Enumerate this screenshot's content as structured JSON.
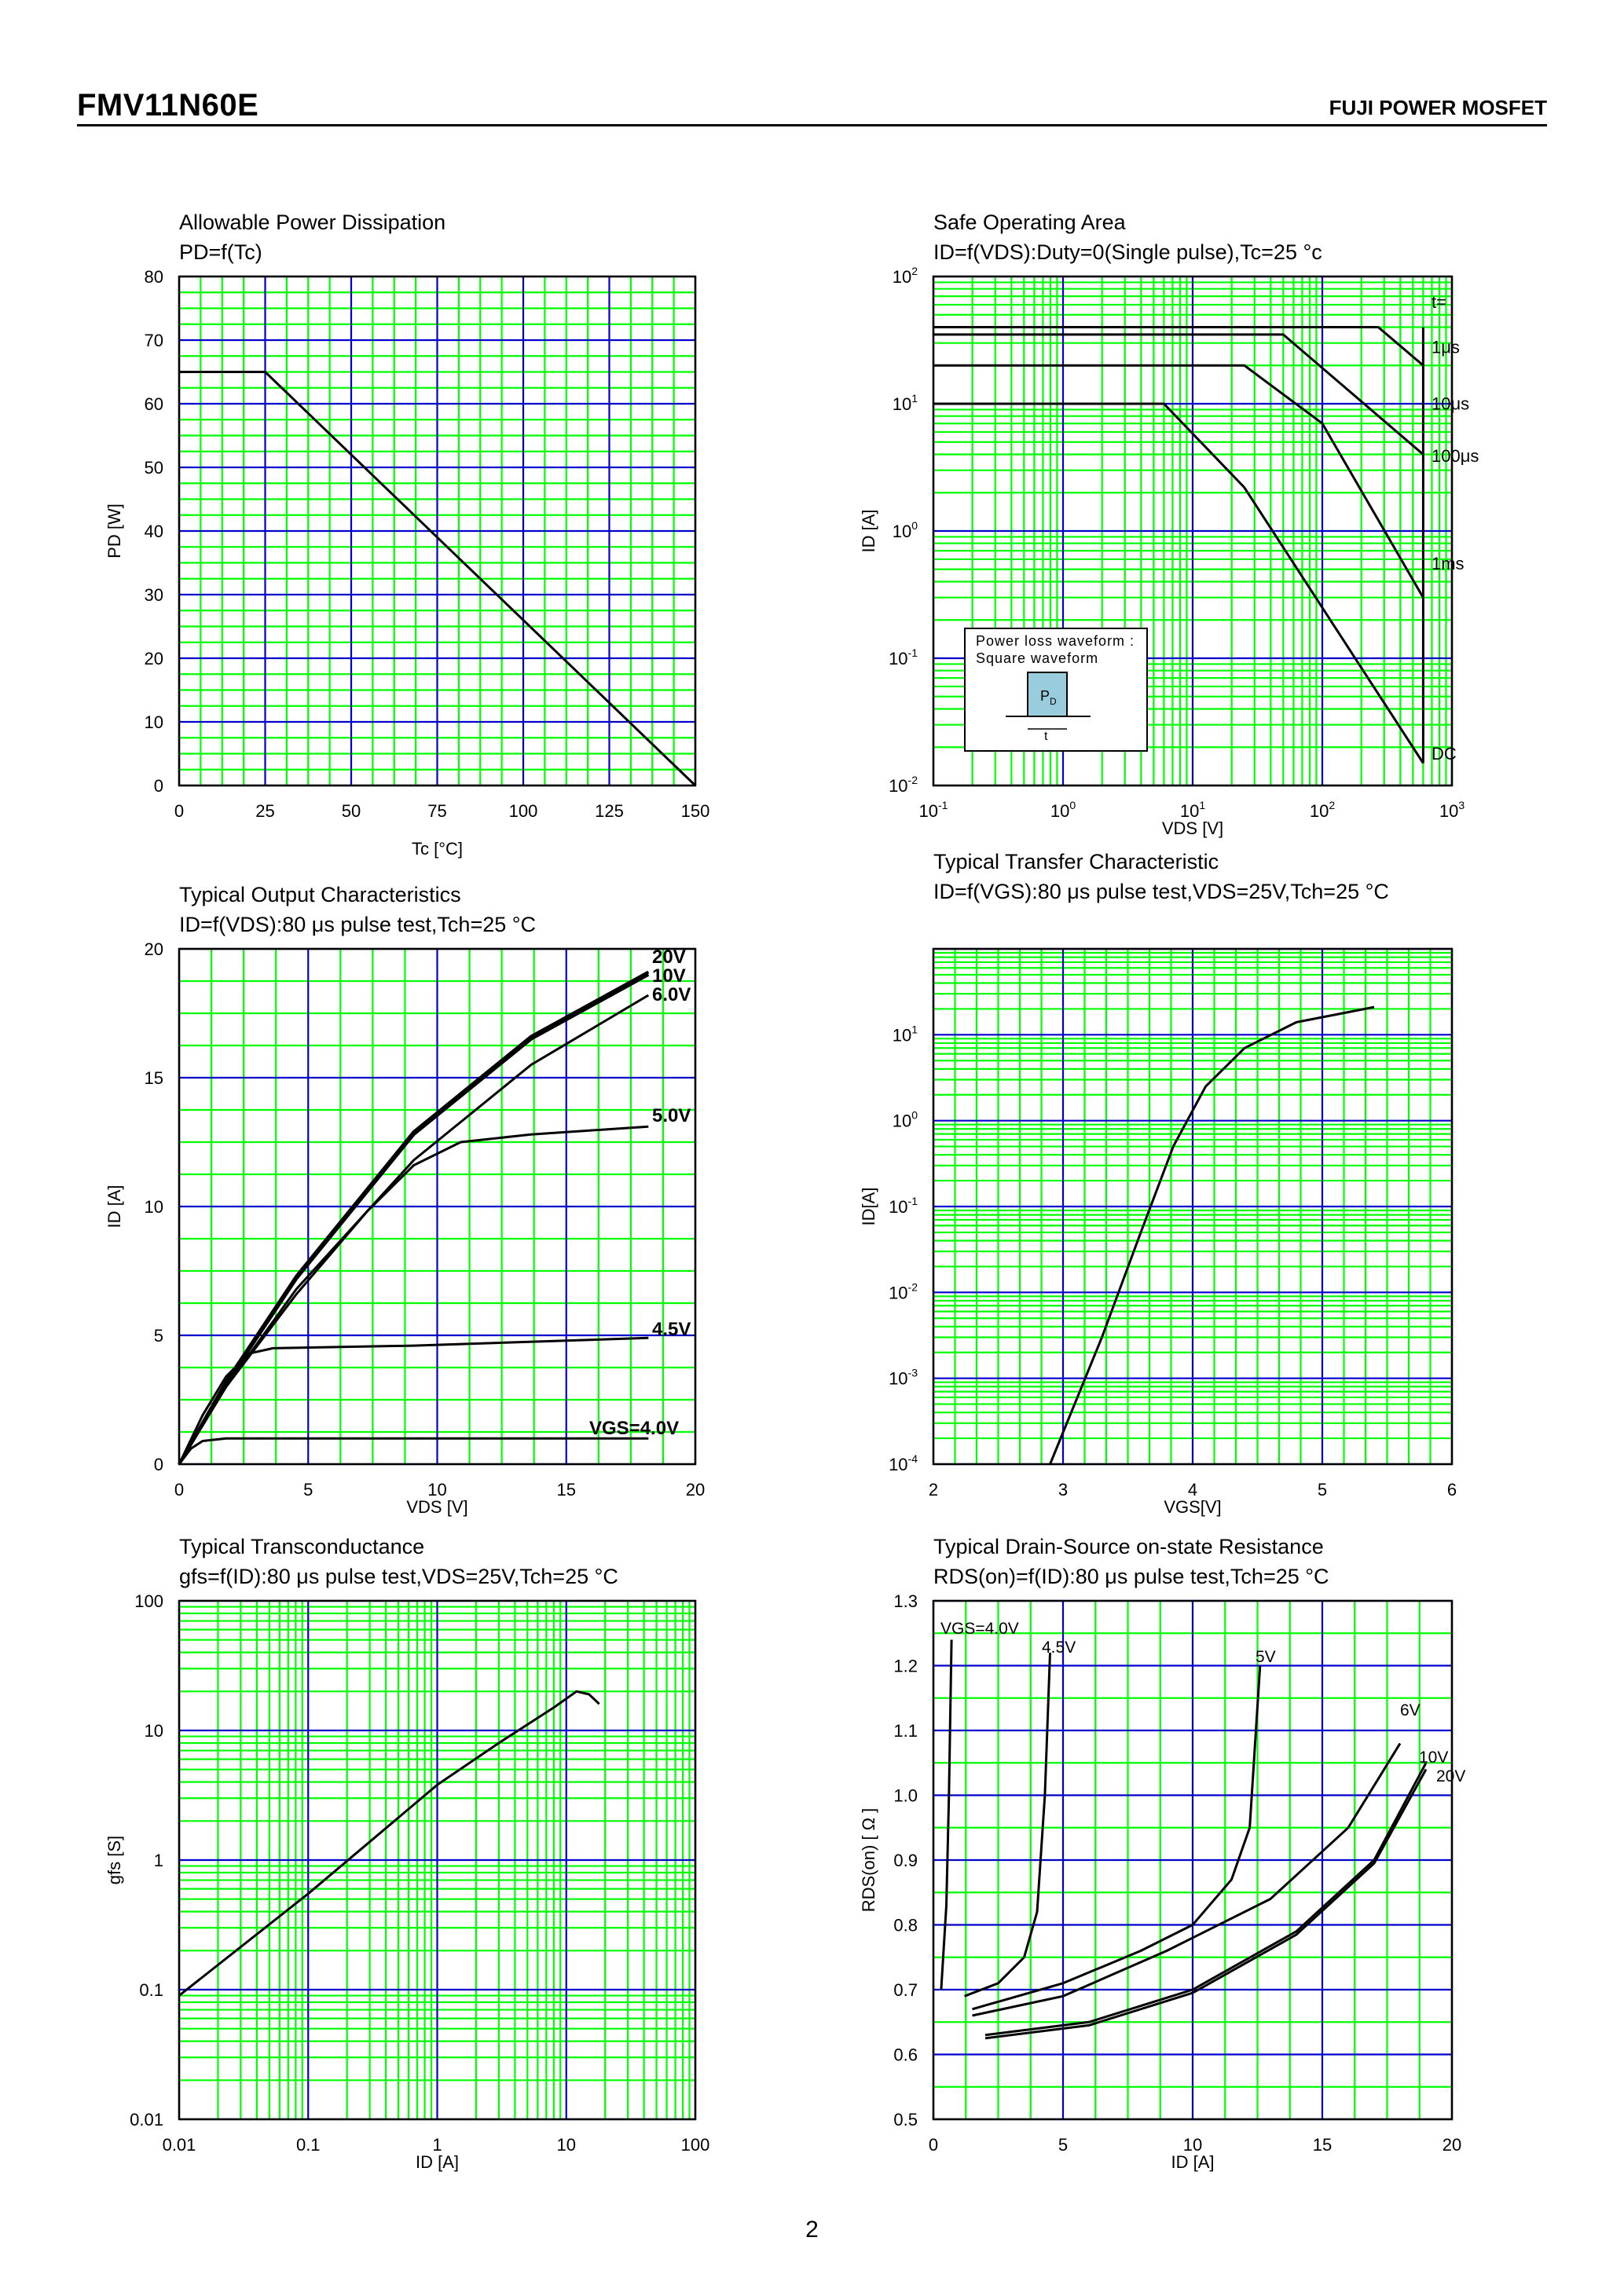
{
  "header": {
    "part_number": "FMV11N60E",
    "brand": "FUJI POWER MOSFET"
  },
  "footer": {
    "page_number": "2"
  },
  "chart_data": [
    {
      "type": "line",
      "title": "Allowable Power Dissipation",
      "subtitle": "PD=f(Tc)",
      "xlabel": "Tc [°C]",
      "ylabel": "PD [W]",
      "xlim": [
        0,
        150
      ],
      "ylim": [
        0,
        80
      ],
      "x_scale": "linear",
      "y_scale": "linear",
      "grid": true,
      "x_ticks": [
        "0",
        "25",
        "50",
        "75",
        "100",
        "125",
        "150"
      ],
      "y_ticks": [
        "0",
        "10",
        "20",
        "30",
        "40",
        "50",
        "60",
        "70",
        "80"
      ],
      "series": [
        {
          "points": [
            [
              0,
              65
            ],
            [
              25,
              65
            ],
            [
              150,
              0
            ]
          ]
        }
      ]
    },
    {
      "type": "line",
      "title": "Safe Operating Area",
      "subtitle": "ID=f(VDS):Duty=0(Single pulse),Tc=25 °c",
      "xlabel": "VDS [V]",
      "ylabel": "ID [A]",
      "xlim": [
        0.1,
        1000
      ],
      "ylim": [
        0.01,
        100
      ],
      "x_scale": "log",
      "y_scale": "log",
      "grid": true,
      "x_ticks": [
        {
          "base": "10",
          "exp": "-1"
        },
        {
          "base": "10",
          "exp": "0"
        },
        {
          "base": "10",
          "exp": "1"
        },
        {
          "base": "10",
          "exp": "2"
        },
        {
          "base": "10",
          "exp": "3"
        }
      ],
      "y_ticks": [
        {
          "base": "10",
          "exp": "-2"
        },
        {
          "base": "10",
          "exp": "-1"
        },
        {
          "base": "10",
          "exp": "0"
        },
        {
          "base": "10",
          "exp": "1"
        },
        {
          "base": "10",
          "exp": "2"
        }
      ],
      "annotations": [
        "t=",
        "1μs",
        "10μs",
        "100μs",
        "1ms",
        "DC"
      ],
      "inset": {
        "line1": "Power loss waveform :",
        "line2": "Square waveform",
        "label_main": "P",
        "label_sub": "D",
        "t_label": "t"
      },
      "series": [
        {
          "name": "1μs",
          "points": [
            [
              0.1,
              40
            ],
            [
              270,
              40
            ],
            [
              600,
              20
            ]
          ]
        },
        {
          "name": "10μs",
          "points": [
            [
              0.1,
              35
            ],
            [
              50,
              35
            ],
            [
              600,
              4
            ]
          ]
        },
        {
          "name": "100μs",
          "points": [
            [
              0.1,
              20
            ],
            [
              25,
              20
            ],
            [
              100,
              7
            ],
            [
              600,
              0.3
            ]
          ]
        },
        {
          "name": "1ms",
          "points": [
            [
              0.1,
              10
            ],
            [
              6,
              10
            ],
            [
              25,
              2.2
            ],
            [
              600,
              0.015
            ]
          ]
        },
        {
          "name": "DC",
          "points": [
            [
              600,
              0.015
            ],
            [
              600,
              40
            ]
          ]
        }
      ]
    },
    {
      "type": "line",
      "title": "Typical Output Characteristics",
      "subtitle": "ID=f(VDS):80 μs pulse test,Tch=25 °C",
      "xlabel": "VDS [V]",
      "ylabel": "ID [A]",
      "xlim": [
        0,
        22
      ],
      "ylim": [
        0,
        20
      ],
      "x_scale": "linear",
      "y_scale": "linear",
      "grid": true,
      "x_ticks": [
        "0",
        "5",
        "10",
        "15",
        "20"
      ],
      "y_ticks": [
        "0",
        "5",
        "10",
        "15",
        "20"
      ],
      "series": [
        {
          "name": "20V",
          "points": [
            [
              0,
              0
            ],
            [
              2,
              3.2
            ],
            [
              5,
              7.3
            ],
            [
              10,
              12.9
            ],
            [
              15,
              16.6
            ],
            [
              20,
              19.1
            ]
          ]
        },
        {
          "name": "10V",
          "points": [
            [
              0,
              0
            ],
            [
              2,
              3.1
            ],
            [
              5,
              7.2
            ],
            [
              10,
              12.8
            ],
            [
              15,
              16.5
            ],
            [
              20,
              19.0
            ]
          ]
        },
        {
          "name": "6.0V",
          "points": [
            [
              0,
              0
            ],
            [
              2,
              3.0
            ],
            [
              5,
              6.8
            ],
            [
              10,
              11.8
            ],
            [
              15,
              15.5
            ],
            [
              20,
              18.2
            ]
          ]
        },
        {
          "name": "5.0V",
          "points": [
            [
              0,
              0
            ],
            [
              2,
              3.0
            ],
            [
              5,
              6.6
            ],
            [
              8,
              9.8
            ],
            [
              10,
              11.6
            ],
            [
              12,
              12.5
            ],
            [
              15,
              12.8
            ],
            [
              20,
              13.1
            ]
          ]
        },
        {
          "name": "4.5V",
          "points": [
            [
              0,
              0
            ],
            [
              1,
              1.9
            ],
            [
              2,
              3.4
            ],
            [
              3,
              4.3
            ],
            [
              4,
              4.5
            ],
            [
              10,
              4.6
            ],
            [
              20,
              4.9
            ]
          ]
        },
        {
          "name": "VGS=4.0V",
          "points": [
            [
              0,
              0
            ],
            [
              0.5,
              0.6
            ],
            [
              1,
              0.9
            ],
            [
              2,
              1.0
            ],
            [
              20,
              1.0
            ]
          ]
        }
      ]
    },
    {
      "type": "line",
      "title": "Typical Transfer Characteristic",
      "subtitle": "ID=f(VGS):80 μs pulse test,VDS=25V,Tch=25 °C",
      "xlabel": "VGS[V]",
      "ylabel": "ID[A]",
      "xlim": [
        2,
        6
      ],
      "ylim": [
        0.0001,
        100
      ],
      "x_scale": "linear",
      "y_scale": "log",
      "grid": true,
      "x_ticks": [
        "2",
        "3",
        "4",
        "5",
        "6"
      ],
      "y_ticks": [
        {
          "base": "10",
          "exp": "-4"
        },
        {
          "base": "10",
          "exp": "-3"
        },
        {
          "base": "10",
          "exp": "-2"
        },
        {
          "base": "10",
          "exp": "-1"
        },
        {
          "base": "10",
          "exp": "0"
        },
        {
          "base": "10",
          "exp": "1"
        }
      ],
      "series": [
        {
          "points": [
            [
              2.9,
              0.0001
            ],
            [
              3.3,
              0.003
            ],
            [
              3.6,
              0.05
            ],
            [
              3.85,
              0.5
            ],
            [
              4.1,
              2.5
            ],
            [
              4.4,
              7
            ],
            [
              4.8,
              14
            ],
            [
              5.4,
              21
            ]
          ]
        }
      ]
    },
    {
      "type": "line",
      "title": "Typical Transconductance",
      "subtitle": "gfs=f(ID):80 μs pulse test,VDS=25V,Tch=25 °C",
      "xlabel": "ID [A]",
      "ylabel": "gfs [S]",
      "xlim": [
        0.01,
        100
      ],
      "ylim": [
        0.01,
        100
      ],
      "x_scale": "log",
      "y_scale": "log",
      "grid": true,
      "x_ticks": [
        "0.01",
        "0.1",
        "1",
        "10",
        "100"
      ],
      "y_ticks": [
        "0.01",
        "0.1",
        "1",
        "10",
        "100"
      ],
      "series": [
        {
          "points": [
            [
              0.01,
              0.09
            ],
            [
              0.1,
              0.55
            ],
            [
              1,
              3.8
            ],
            [
              3,
              8
            ],
            [
              8,
              15
            ],
            [
              12,
              20
            ],
            [
              15,
              19
            ],
            [
              18,
              16
            ]
          ]
        }
      ]
    },
    {
      "type": "line",
      "title": "Typical Drain-Source on-state Resistance",
      "subtitle": "RDS(on)=f(ID):80 μs pulse test,Tch=25 °C",
      "xlabel": "ID [A]",
      "ylabel": "RDS(on) [ Ω ]",
      "xlim": [
        0,
        20
      ],
      "ylim": [
        0.5,
        1.3
      ],
      "x_scale": "linear",
      "y_scale": "linear",
      "grid": true,
      "x_ticks": [
        "0",
        "5",
        "10",
        "15",
        "20"
      ],
      "y_ticks": [
        "0.5",
        "0.6",
        "0.7",
        "0.8",
        "0.9",
        "1.0",
        "1.1",
        "1.2",
        "1.3"
      ],
      "series": [
        {
          "name": "VGS=4.0V",
          "points": [
            [
              0.3,
              0.7
            ],
            [
              0.5,
              0.83
            ],
            [
              0.6,
              1.0
            ],
            [
              0.7,
              1.24
            ]
          ]
        },
        {
          "name": "4.5V",
          "points": [
            [
              1.2,
              0.69
            ],
            [
              2.5,
              0.71
            ],
            [
              3.5,
              0.75
            ],
            [
              4,
              0.82
            ],
            [
              4.3,
              1.0
            ],
            [
              4.5,
              1.22
            ]
          ]
        },
        {
          "name": "5V",
          "points": [
            [
              1.5,
              0.67
            ],
            [
              5,
              0.71
            ],
            [
              8,
              0.76
            ],
            [
              10,
              0.8
            ],
            [
              11.5,
              0.87
            ],
            [
              12.2,
              0.95
            ],
            [
              12.6,
              1.2
            ]
          ]
        },
        {
          "name": "6V",
          "points": [
            [
              1.5,
              0.66
            ],
            [
              5,
              0.69
            ],
            [
              9,
              0.76
            ],
            [
              13,
              0.84
            ],
            [
              16,
              0.95
            ],
            [
              18,
              1.08
            ]
          ]
        },
        {
          "name": "10V",
          "points": [
            [
              2,
              0.63
            ],
            [
              6,
              0.65
            ],
            [
              10,
              0.7
            ],
            [
              14,
              0.79
            ],
            [
              17,
              0.9
            ],
            [
              19,
              1.05
            ]
          ]
        },
        {
          "name": "20V",
          "points": [
            [
              2,
              0.625
            ],
            [
              6,
              0.645
            ],
            [
              10,
              0.695
            ],
            [
              14,
              0.785
            ],
            [
              17,
              0.895
            ],
            [
              19,
              1.04
            ]
          ]
        }
      ]
    }
  ]
}
